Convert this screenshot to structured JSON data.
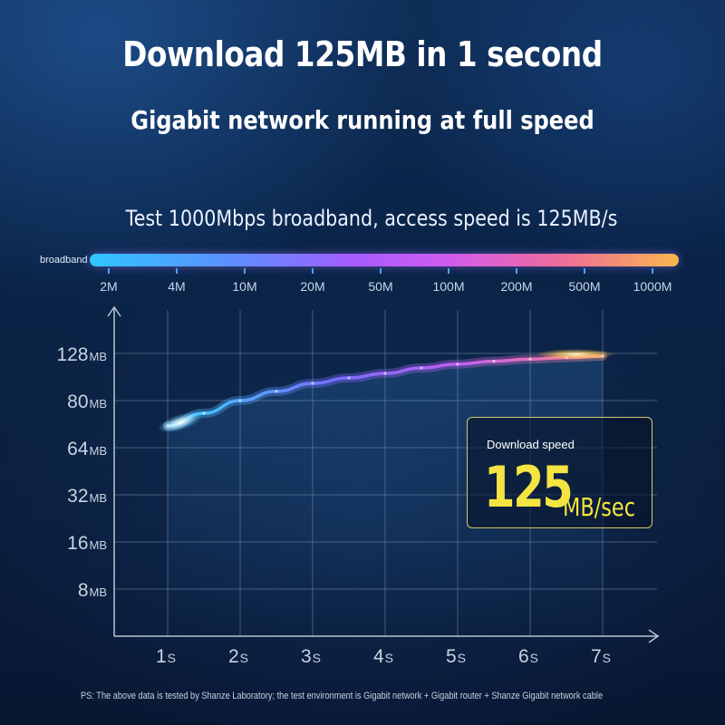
{
  "header": {
    "headline": "Download 125MB in 1 second",
    "subheadline": "Gigabit network running at full speed"
  },
  "broadband_scale": {
    "title": "Test 1000Mbps broadband, access speed is 125MB/s",
    "bar_label": "broadband",
    "ticks": [
      "2M",
      "4M",
      "10M",
      "20M",
      "50M",
      "100M",
      "200M",
      "500M",
      "1000M"
    ],
    "gradient_colors": [
      "#2fc6ff",
      "#a65cff",
      "#f06c9b",
      "#f9b64e"
    ]
  },
  "chart_data": {
    "type": "line",
    "y_ticks": [
      {
        "value": "128",
        "unit": "MB"
      },
      {
        "value": "80",
        "unit": "MB"
      },
      {
        "value": "64",
        "unit": "MB"
      },
      {
        "value": "32",
        "unit": "MB"
      },
      {
        "value": "16",
        "unit": "MB"
      },
      {
        "value": "8",
        "unit": "MB"
      }
    ],
    "x_ticks": [
      {
        "value": "1",
        "unit": "S"
      },
      {
        "value": "2",
        "unit": "S"
      },
      {
        "value": "3",
        "unit": "S"
      },
      {
        "value": "4",
        "unit": "S"
      },
      {
        "value": "5",
        "unit": "S"
      },
      {
        "value": "6",
        "unit": "S"
      },
      {
        "value": "7",
        "unit": "S"
      }
    ],
    "series": [
      {
        "x": [
          1,
          1.5,
          2,
          2.5,
          3,
          3.5,
          4,
          4.5,
          5,
          5.5,
          6,
          6.5,
          7
        ],
        "y": [
          70,
          75,
          80,
          86,
          92,
          98,
          103,
          109,
          114,
          118,
          121,
          123,
          125
        ]
      }
    ],
    "line_colors": [
      "#e8f6ff",
      "#44c3ff",
      "#7a6cff",
      "#c05ef0",
      "#f07aa0",
      "#ffd86a"
    ],
    "grid": true
  },
  "speed_box": {
    "caption": "Download speed",
    "value": "125",
    "unit": "MB/sec",
    "accent_color": "#f3e441"
  },
  "footnote": "PS: The above data is tested by Shanze Laboratory; the test environment is Gigabit network + Gigabit router + Shanze Gigabit network cable"
}
